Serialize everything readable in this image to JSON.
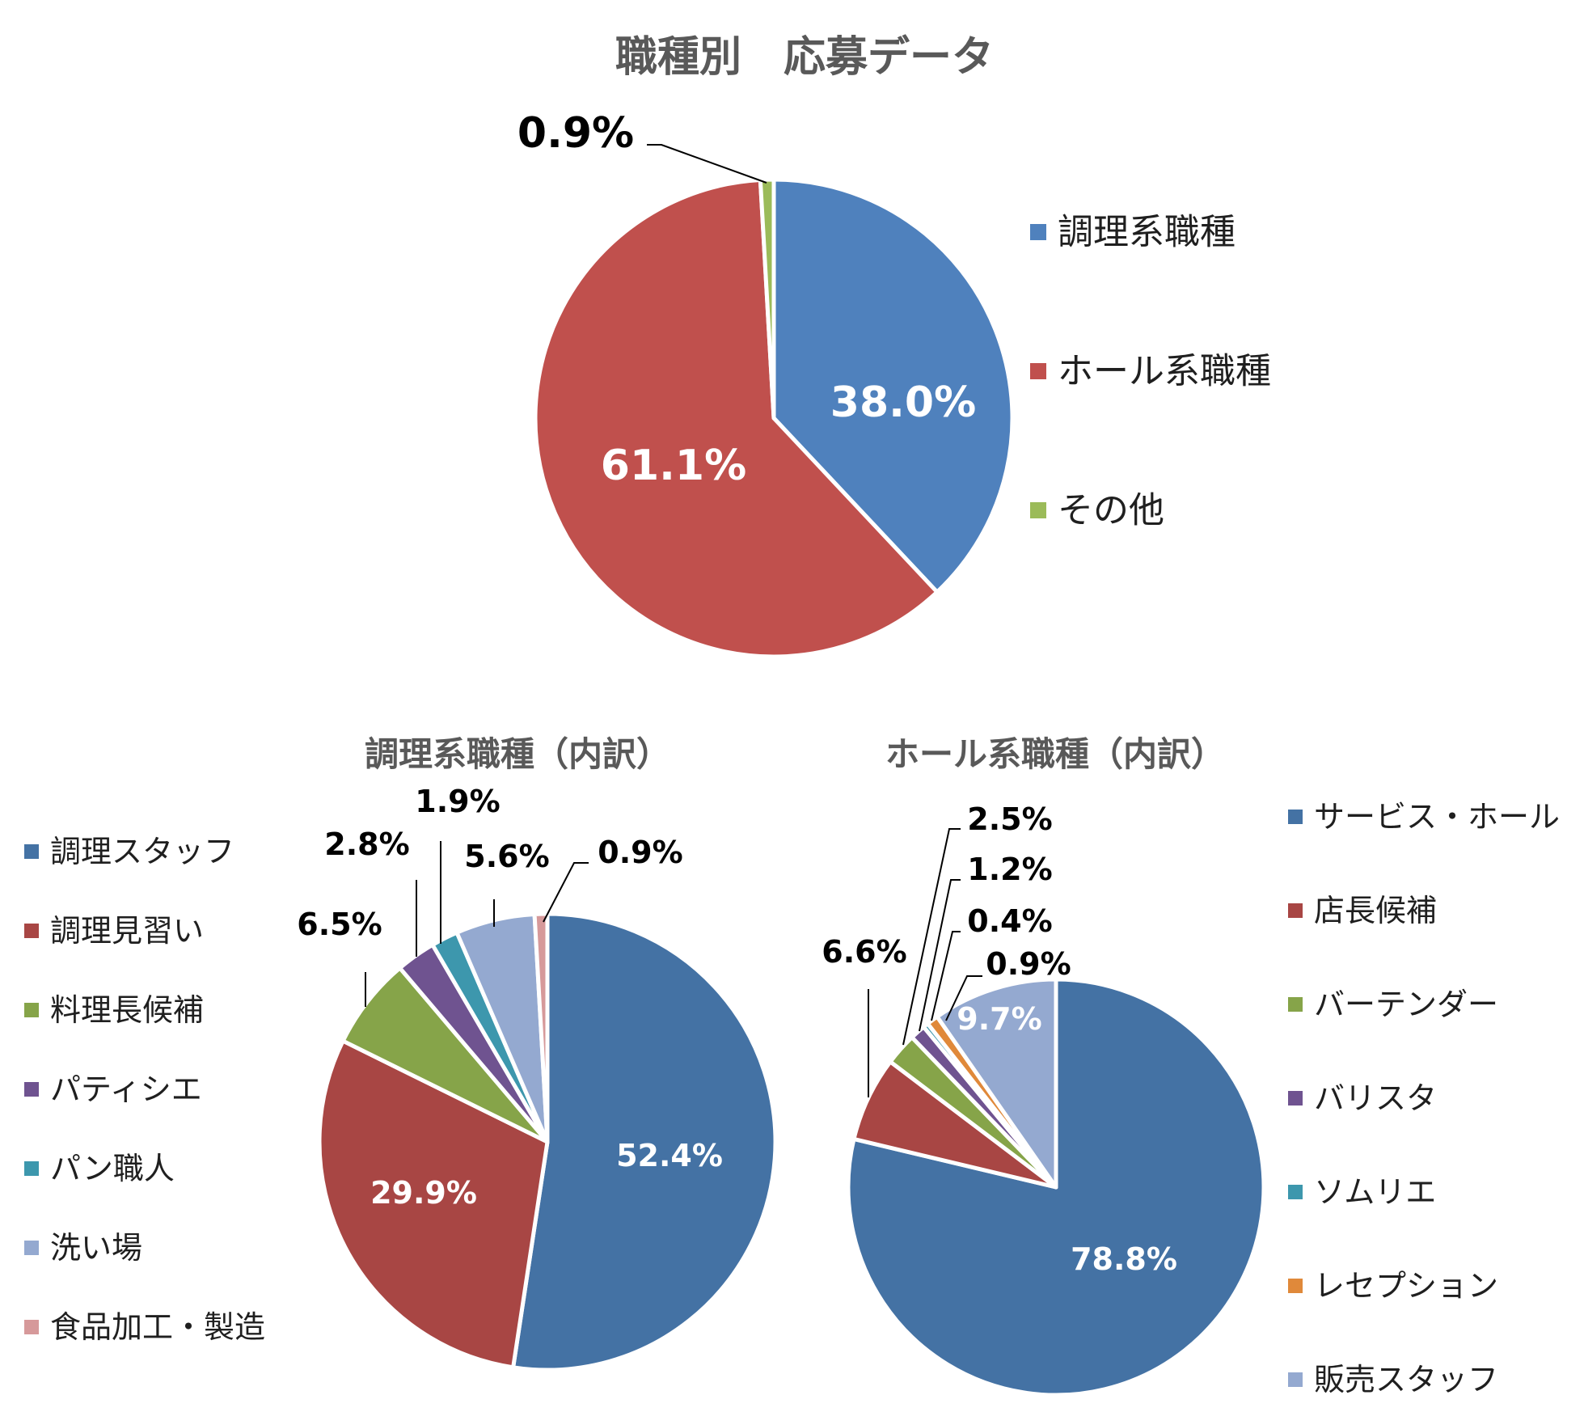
{
  "chart_data": [
    {
      "type": "pie",
      "title": "職種別　応募データ",
      "categories": [
        "調理系職種",
        "ホール系職種",
        "その他"
      ],
      "values": [
        38.0,
        61.1,
        0.9
      ],
      "labels": [
        "38.0%",
        "61.1%",
        "0.9%"
      ],
      "colors": [
        "#4f81bd",
        "#c0504d",
        "#9bbb59"
      ],
      "legend": "right"
    },
    {
      "type": "pie",
      "title": "調理系職種（内訳）",
      "categories": [
        "調理スタッフ",
        "調理見習い",
        "料理長候補",
        "パティシエ",
        "パン職人",
        "洗い場",
        "食品加工・製造"
      ],
      "values": [
        52.4,
        29.9,
        6.5,
        2.8,
        1.9,
        5.6,
        0.9
      ],
      "labels": [
        "52.4%",
        "29.9%",
        "6.5%",
        "2.8%",
        "1.9%",
        "5.6%",
        "0.9%"
      ],
      "colors": [
        "#4472a4",
        "#a84644",
        "#86a449",
        "#6f5390",
        "#3d97ad",
        "#94a9d0",
        "#d6999a"
      ],
      "legend": "left"
    },
    {
      "type": "pie",
      "title": "ホール系職種（内訳）",
      "categories": [
        "サービス・ホール",
        "店長候補",
        "バーテンダー",
        "バリスタ",
        "ソムリエ",
        "レセプション",
        "販売スタッフ"
      ],
      "values": [
        78.8,
        6.6,
        2.5,
        1.2,
        0.4,
        0.9,
        9.7
      ],
      "labels": [
        "78.8%",
        "6.6%",
        "2.5%",
        "1.2%",
        "0.4%",
        "0.9%",
        "9.7%"
      ],
      "colors": [
        "#4472a4",
        "#a84644",
        "#86a449",
        "#6f5390",
        "#3d97ad",
        "#e0893a",
        "#94a9d0"
      ],
      "legend": "right"
    }
  ]
}
